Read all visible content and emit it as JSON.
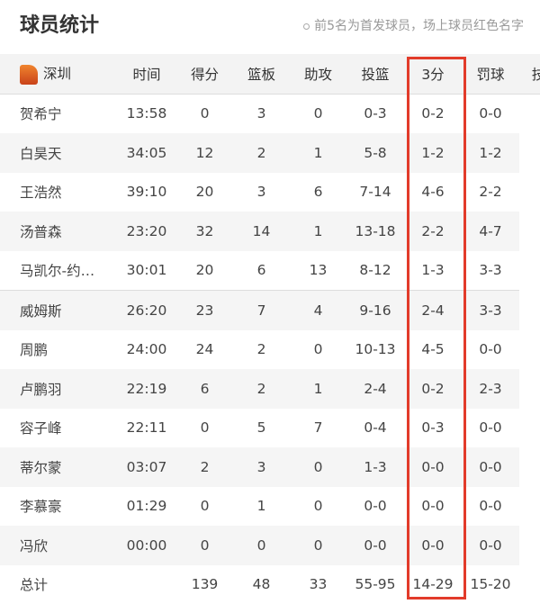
{
  "header": {
    "title": "球员统计",
    "note": "前5名为首发球员，场上球员红色名字"
  },
  "table": {
    "team": "深圳",
    "team_logo": "team-logo-icon",
    "columns": [
      "时间",
      "得分",
      "篮板",
      "助攻",
      "投篮",
      "3分",
      "罚球",
      "技"
    ],
    "rows": [
      [
        "贺希宁",
        "13:58",
        "0",
        "3",
        "0",
        "0-3",
        "0-2",
        "0-0"
      ],
      [
        "白昊天",
        "34:05",
        "12",
        "2",
        "1",
        "5-8",
        "1-2",
        "1-2"
      ],
      [
        "王浩然",
        "39:10",
        "20",
        "3",
        "6",
        "7-14",
        "4-6",
        "2-2"
      ],
      [
        "汤普森",
        "23:20",
        "32",
        "14",
        "1",
        "13-18",
        "2-2",
        "4-7"
      ],
      [
        "马凯尔-约…",
        "30:01",
        "20",
        "6",
        "13",
        "8-12",
        "1-3",
        "3-3"
      ],
      [
        "威姆斯",
        "26:20",
        "23",
        "7",
        "4",
        "9-16",
        "2-4",
        "3-3"
      ],
      [
        "周鹏",
        "24:00",
        "24",
        "2",
        "0",
        "10-13",
        "4-5",
        "0-0"
      ],
      [
        "卢鹏羽",
        "22:19",
        "6",
        "2",
        "1",
        "2-4",
        "0-2",
        "2-3"
      ],
      [
        "容子峰",
        "22:11",
        "0",
        "5",
        "7",
        "0-4",
        "0-3",
        "0-0"
      ],
      [
        "蒂尔蒙",
        "03:07",
        "2",
        "3",
        "0",
        "1-3",
        "0-0",
        "0-0"
      ],
      [
        "李慕豪",
        "01:29",
        "0",
        "1",
        "0",
        "0-0",
        "0-0",
        "0-0"
      ],
      [
        "冯欣",
        "00:00",
        "0",
        "0",
        "0",
        "0-0",
        "0-0",
        "0-0"
      ]
    ],
    "total": [
      "总计",
      "",
      "139",
      "48",
      "33",
      "55-95",
      "14-29",
      "15-20"
    ]
  },
  "highlight_color": "#e23b2a"
}
